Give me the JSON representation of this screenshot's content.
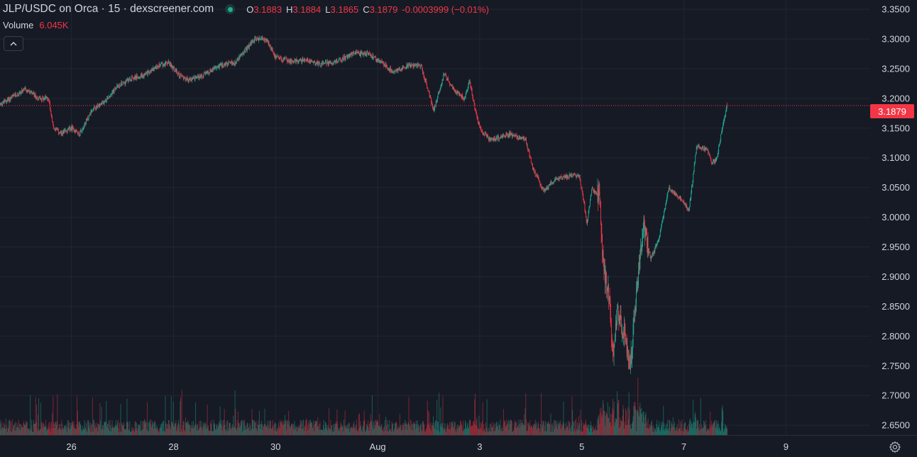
{
  "legend": {
    "title": "JLP/USDC on Orca · 15 · dexscreener.com",
    "ohlc": [
      {
        "k": "O",
        "v": "3.1883"
      },
      {
        "k": "H",
        "v": "3.1884"
      },
      {
        "k": "L",
        "v": "3.1865"
      },
      {
        "k": "C",
        "v": "3.1879"
      }
    ],
    "change": "-0.0003999 (−0.01%)",
    "volume_label": "Volume",
    "volume_value": "6.045K"
  },
  "collapse_icon": "chevron-up-icon",
  "settings_icon": "gear-icon",
  "last_price": "3.1879",
  "colors": {
    "up": "#22ab94",
    "down": "#f23645",
    "background": "#161a25",
    "grid": "#232632",
    "text": "#d1d4dc"
  },
  "chart_data": {
    "type": "candlestick",
    "interval": "15",
    "ylim": [
      2.6335,
      3.3655
    ],
    "yticks": [
      "3.3500",
      "3.3000",
      "3.2500",
      "3.2000",
      "3.1500",
      "3.1000",
      "3.0500",
      "3.0000",
      "2.9500",
      "2.9000",
      "2.8500",
      "2.8000",
      "2.7500",
      "2.7000",
      "2.6500"
    ],
    "xticks": [
      {
        "label": "26",
        "day": 26
      },
      {
        "label": "28",
        "day": 28
      },
      {
        "label": "30",
        "day": 30
      },
      {
        "label": "Aug",
        "day": 32
      },
      {
        "label": "3",
        "day": 34
      },
      {
        "label": "5",
        "day": 36
      },
      {
        "label": "7",
        "day": 38
      },
      {
        "label": "9",
        "day": 40
      }
    ],
    "x_range_days": [
      24.6,
      41.65
    ],
    "last_price_line": 3.1879,
    "price_path": [
      [
        24.6,
        3.19
      ],
      [
        24.9,
        3.205
      ],
      [
        25.1,
        3.215
      ],
      [
        25.35,
        3.2
      ],
      [
        25.55,
        3.2
      ],
      [
        25.65,
        3.15
      ],
      [
        25.8,
        3.14
      ],
      [
        26.0,
        3.15
      ],
      [
        26.15,
        3.14
      ],
      [
        26.25,
        3.155
      ],
      [
        26.4,
        3.18
      ],
      [
        26.6,
        3.19
      ],
      [
        26.9,
        3.22
      ],
      [
        27.2,
        3.235
      ],
      [
        27.45,
        3.24
      ],
      [
        27.7,
        3.255
      ],
      [
        27.9,
        3.26
      ],
      [
        28.1,
        3.24
      ],
      [
        28.3,
        3.23
      ],
      [
        28.6,
        3.24
      ],
      [
        28.9,
        3.255
      ],
      [
        29.2,
        3.26
      ],
      [
        29.4,
        3.28
      ],
      [
        29.6,
        3.3
      ],
      [
        29.8,
        3.3
      ],
      [
        30.0,
        3.27
      ],
      [
        30.3,
        3.262
      ],
      [
        30.6,
        3.265
      ],
      [
        30.9,
        3.258
      ],
      [
        31.2,
        3.262
      ],
      [
        31.5,
        3.275
      ],
      [
        31.8,
        3.275
      ],
      [
        32.0,
        3.265
      ],
      [
        32.3,
        3.245
      ],
      [
        32.6,
        3.255
      ],
      [
        32.85,
        3.255
      ],
      [
        33.0,
        3.21
      ],
      [
        33.1,
        3.18
      ],
      [
        33.3,
        3.24
      ],
      [
        33.5,
        3.215
      ],
      [
        33.7,
        3.2
      ],
      [
        33.8,
        3.23
      ],
      [
        33.9,
        3.185
      ],
      [
        34.0,
        3.15
      ],
      [
        34.2,
        3.13
      ],
      [
        34.4,
        3.135
      ],
      [
        34.6,
        3.14
      ],
      [
        34.9,
        3.13
      ],
      [
        35.05,
        3.08
      ],
      [
        35.25,
        3.045
      ],
      [
        35.5,
        3.065
      ],
      [
        35.8,
        3.07
      ],
      [
        35.95,
        3.07
      ],
      [
        36.05,
        3.02
      ],
      [
        36.1,
        2.99
      ],
      [
        36.2,
        3.05
      ],
      [
        36.35,
        3.03
      ],
      [
        36.4,
        2.95
      ],
      [
        36.45,
        2.9
      ],
      [
        36.55,
        2.86
      ],
      [
        36.6,
        2.76
      ],
      [
        36.7,
        2.84
      ],
      [
        36.85,
        2.8
      ],
      [
        36.95,
        2.75
      ],
      [
        37.05,
        2.85
      ],
      [
        37.2,
        2.99
      ],
      [
        37.35,
        2.93
      ],
      [
        37.5,
        2.96
      ],
      [
        37.55,
        2.98
      ],
      [
        37.7,
        3.05
      ],
      [
        37.95,
        3.03
      ],
      [
        38.1,
        3.01
      ],
      [
        38.25,
        3.12
      ],
      [
        38.45,
        3.115
      ],
      [
        38.55,
        3.09
      ],
      [
        38.65,
        3.1
      ],
      [
        38.75,
        3.15
      ],
      [
        38.85,
        3.19
      ]
    ],
    "volume_max_label": "6.045K"
  }
}
